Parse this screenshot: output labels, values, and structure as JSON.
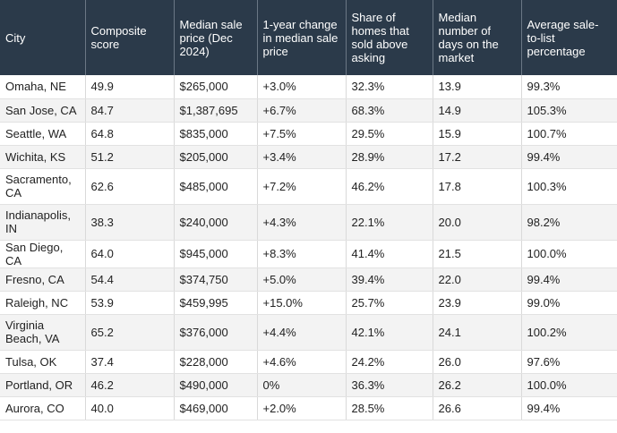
{
  "table": {
    "headers": [
      "City",
      "Composite score",
      "Median sale price (Dec 2024)",
      "1-year change in median sale price",
      "Share of homes that sold above asking",
      "Median number of days on the market",
      "Average sale-to-list percentage"
    ],
    "rows": [
      [
        "Omaha, NE",
        "49.9",
        "$265,000",
        "+3.0%",
        "32.3%",
        "13.9",
        "99.3%"
      ],
      [
        "San Jose, CA",
        "84.7",
        "$1,387,695",
        "+6.7%",
        "68.3%",
        "14.9",
        "105.3%"
      ],
      [
        "Seattle, WA",
        "64.8",
        "$835,000",
        "+7.5%",
        "29.5%",
        "15.9",
        "100.7%"
      ],
      [
        "Wichita, KS",
        "51.2",
        "$205,000",
        "+3.4%",
        "28.9%",
        "17.2",
        "99.4%"
      ],
      [
        "Sacramento, CA",
        "62.6",
        "$485,000",
        "+7.2%",
        "46.2%",
        "17.8",
        "100.3%"
      ],
      [
        "Indianapolis, IN",
        "38.3",
        "$240,000",
        "+4.3%",
        "22.1%",
        "20.0",
        "98.2%"
      ],
      [
        "San Diego, CA",
        "64.0",
        "$945,000",
        "+8.3%",
        "41.4%",
        "21.5",
        "100.0%"
      ],
      [
        "Fresno, CA",
        "54.4",
        "$374,750",
        "+5.0%",
        "39.4%",
        "22.0",
        "99.4%"
      ],
      [
        "Raleigh, NC",
        "53.9",
        "$459,995",
        "+15.0%",
        "25.7%",
        "23.9",
        "99.0%"
      ],
      [
        "Virginia Beach, VA",
        "65.2",
        "$376,000",
        "+4.4%",
        "42.1%",
        "24.1",
        "100.2%"
      ],
      [
        "Tulsa, OK",
        "37.4",
        "$228,000",
        "+4.6%",
        "24.2%",
        "26.0",
        "97.6%"
      ],
      [
        "Portland, OR",
        "46.2",
        "$490,000",
        "0%",
        "36.3%",
        "26.2",
        "100.0%"
      ],
      [
        "Aurora, CO",
        "40.0",
        "$469,000",
        "+2.0%",
        "28.5%",
        "26.6",
        "99.4%"
      ]
    ]
  }
}
